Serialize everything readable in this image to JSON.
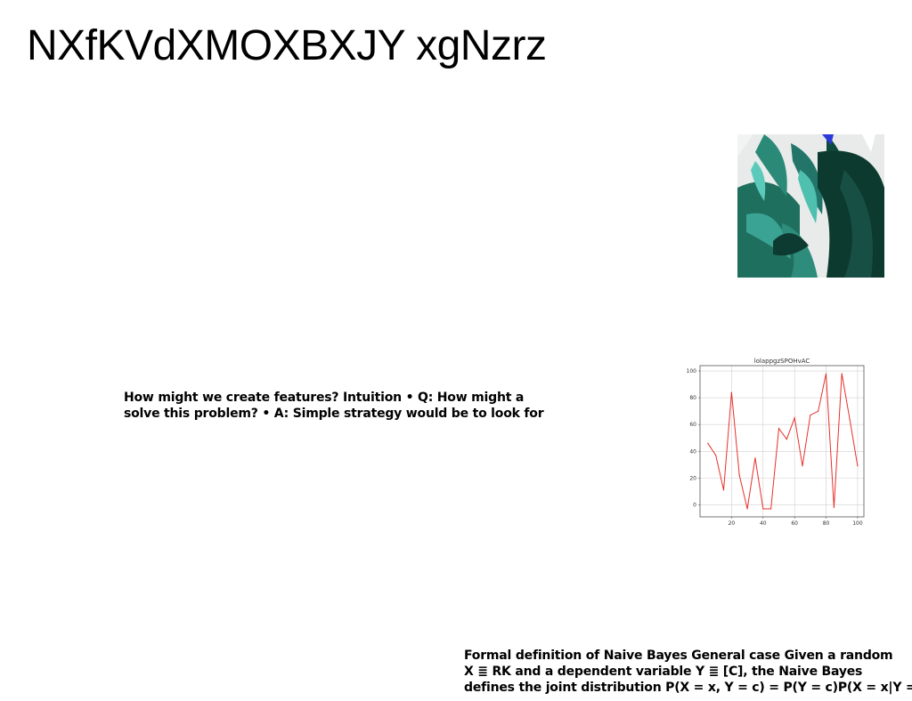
{
  "slide": {
    "title": "NXfKVdXMOXBXJY xgNzrz",
    "text_block_1": [
      "How might we create features? Intuition • Q: How might a",
      "solve this problem? • A: Simple strategy would be to look for"
    ],
    "text_block_2": [
      "Formal definition of Naive Bayes General case Given a random",
      "X ≣ RK and a dependent variable Y ≣ [C], the Naive Bayes",
      "defines the joint distribution P(X = x, Y = c) = P(Y = c)P(X = x|Y ="
    ]
  },
  "colors": {
    "line": "#e8302a",
    "grid": "#d0d0d0",
    "frame": "#555555"
  },
  "chart_data": {
    "type": "line",
    "title": "lolappgzSPOHvAC",
    "xlabel": "",
    "ylabel": "",
    "x": [
      5,
      10,
      15,
      20,
      25,
      30,
      35,
      40,
      45,
      50,
      55,
      60,
      65,
      70,
      75,
      80,
      85,
      90,
      95,
      100
    ],
    "values": [
      46,
      37,
      11,
      84,
      22,
      -3,
      35,
      -3,
      -3,
      57,
      49,
      65,
      29,
      67,
      70,
      98,
      -2,
      98,
      64,
      29
    ],
    "xticks": [
      20,
      40,
      60,
      80,
      100
    ],
    "yticks": [
      0,
      20,
      40,
      60,
      80,
      100
    ],
    "xlim": [
      0,
      104
    ],
    "ylim": [
      -9,
      104
    ],
    "grid": true
  }
}
